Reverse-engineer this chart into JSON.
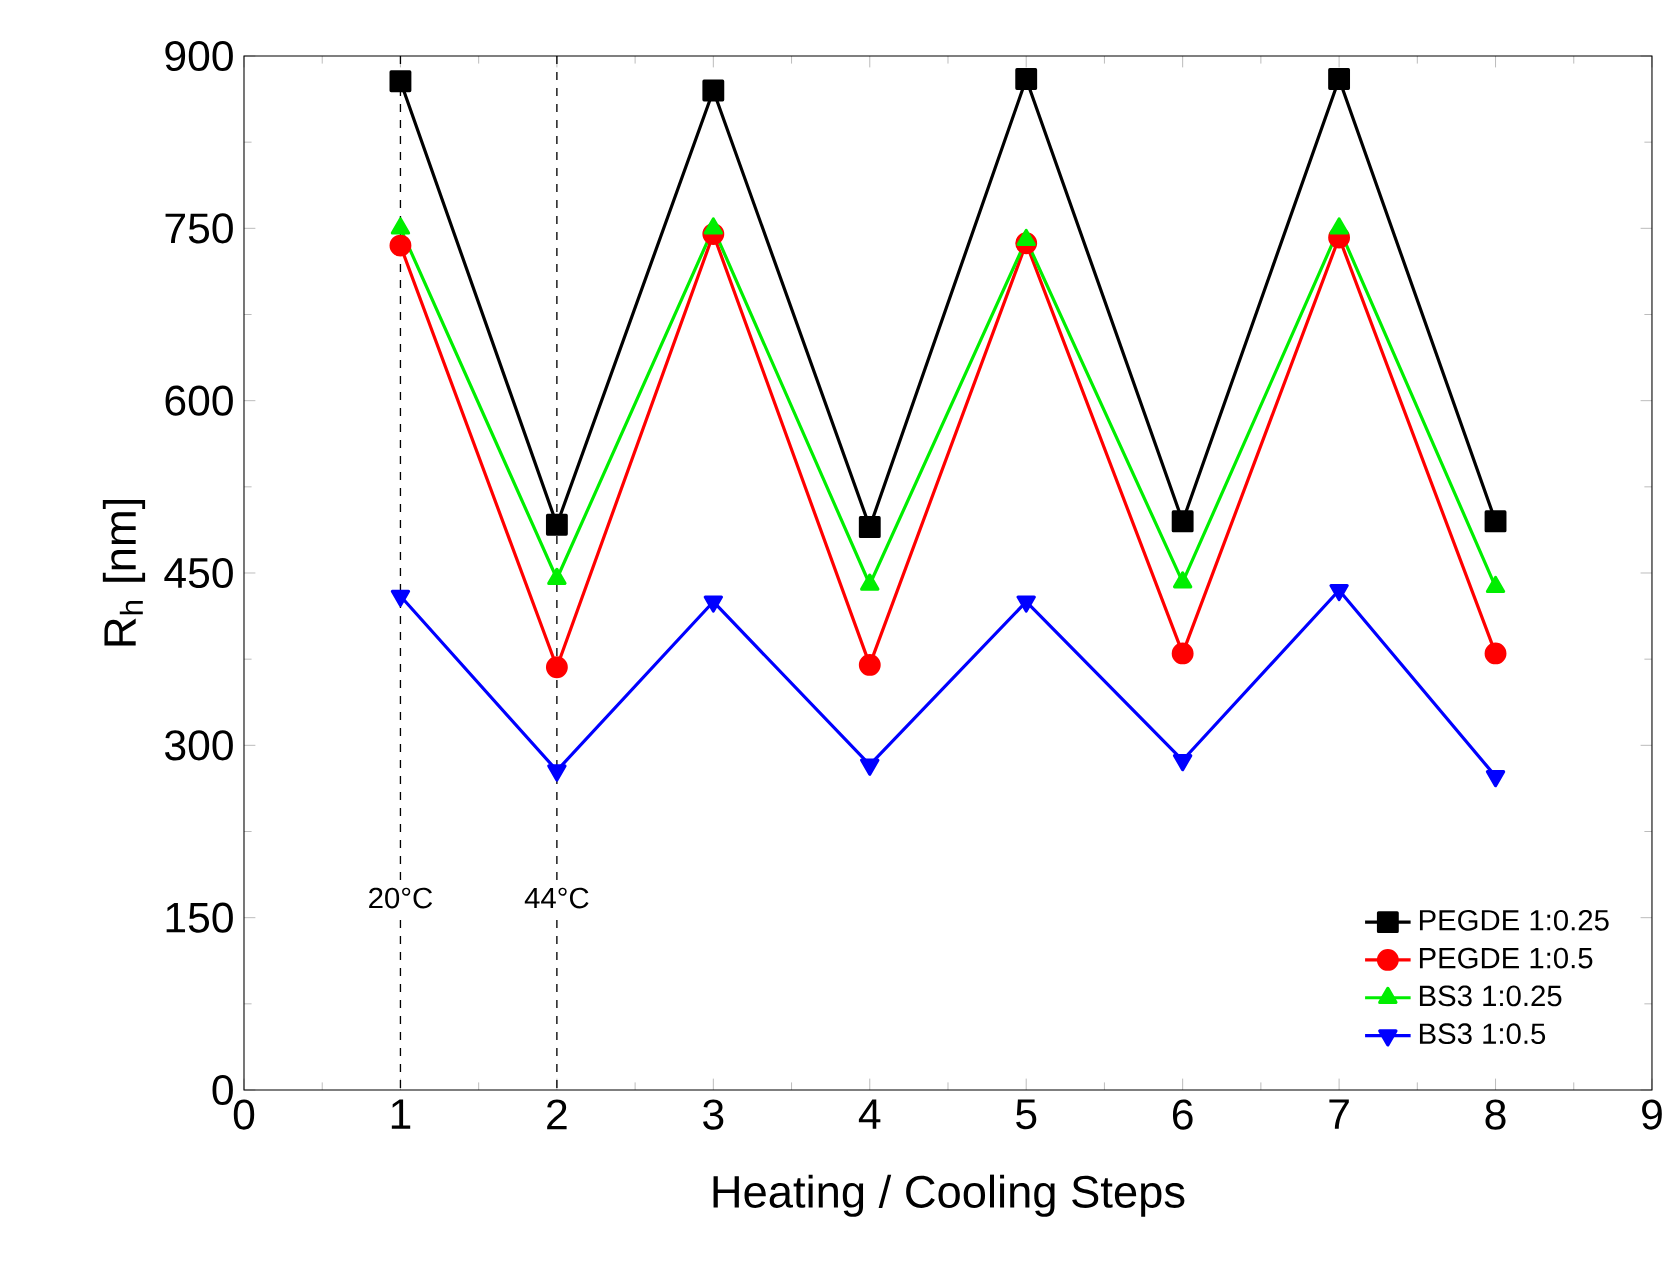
{
  "chart_data": {
    "type": "line",
    "xlabel": "Heating / Cooling Steps",
    "ylabel": "R$_{h}$ [nm]",
    "x": [
      1,
      2,
      3,
      4,
      5,
      6,
      7,
      8
    ],
    "series": [
      {
        "name": "PEGDE 1:0.25",
        "color": "#000000",
        "marker": "square",
        "values": [
          878,
          492,
          870,
          490,
          880,
          495,
          880,
          495
        ]
      },
      {
        "name": "PEGDE 1:0.5",
        "color": "#ff0000",
        "marker": "circle",
        "values": [
          735,
          368,
          745,
          370,
          737,
          380,
          742,
          380
        ]
      },
      {
        "name": "BS3 1:0.25",
        "color": "#00ee00",
        "marker": "triangle",
        "values": [
          750,
          445,
          750,
          440,
          740,
          442,
          750,
          438
        ]
      },
      {
        "name": "BS3 1:0.5",
        "color": "#0000ff",
        "marker": "triangle-down",
        "values": [
          430,
          278,
          425,
          283,
          425,
          287,
          435,
          273
        ]
      }
    ],
    "xlim": [
      0,
      9
    ],
    "xticks": [
      0,
      1,
      2,
      3,
      4,
      5,
      6,
      7,
      8,
      9
    ],
    "ylim": [
      0,
      900
    ],
    "yticks": [
      0,
      150,
      300,
      450,
      600,
      750,
      900
    ],
    "ref_lines": [
      {
        "axis": "x",
        "value": 1,
        "label": "20°C",
        "line_style": "dashed",
        "color": "#000000"
      },
      {
        "axis": "x",
        "value": 2,
        "label": "44°C",
        "line_style": "dashed",
        "color": "#000000"
      }
    ],
    "legend": "bottom right",
    "grid": false
  }
}
